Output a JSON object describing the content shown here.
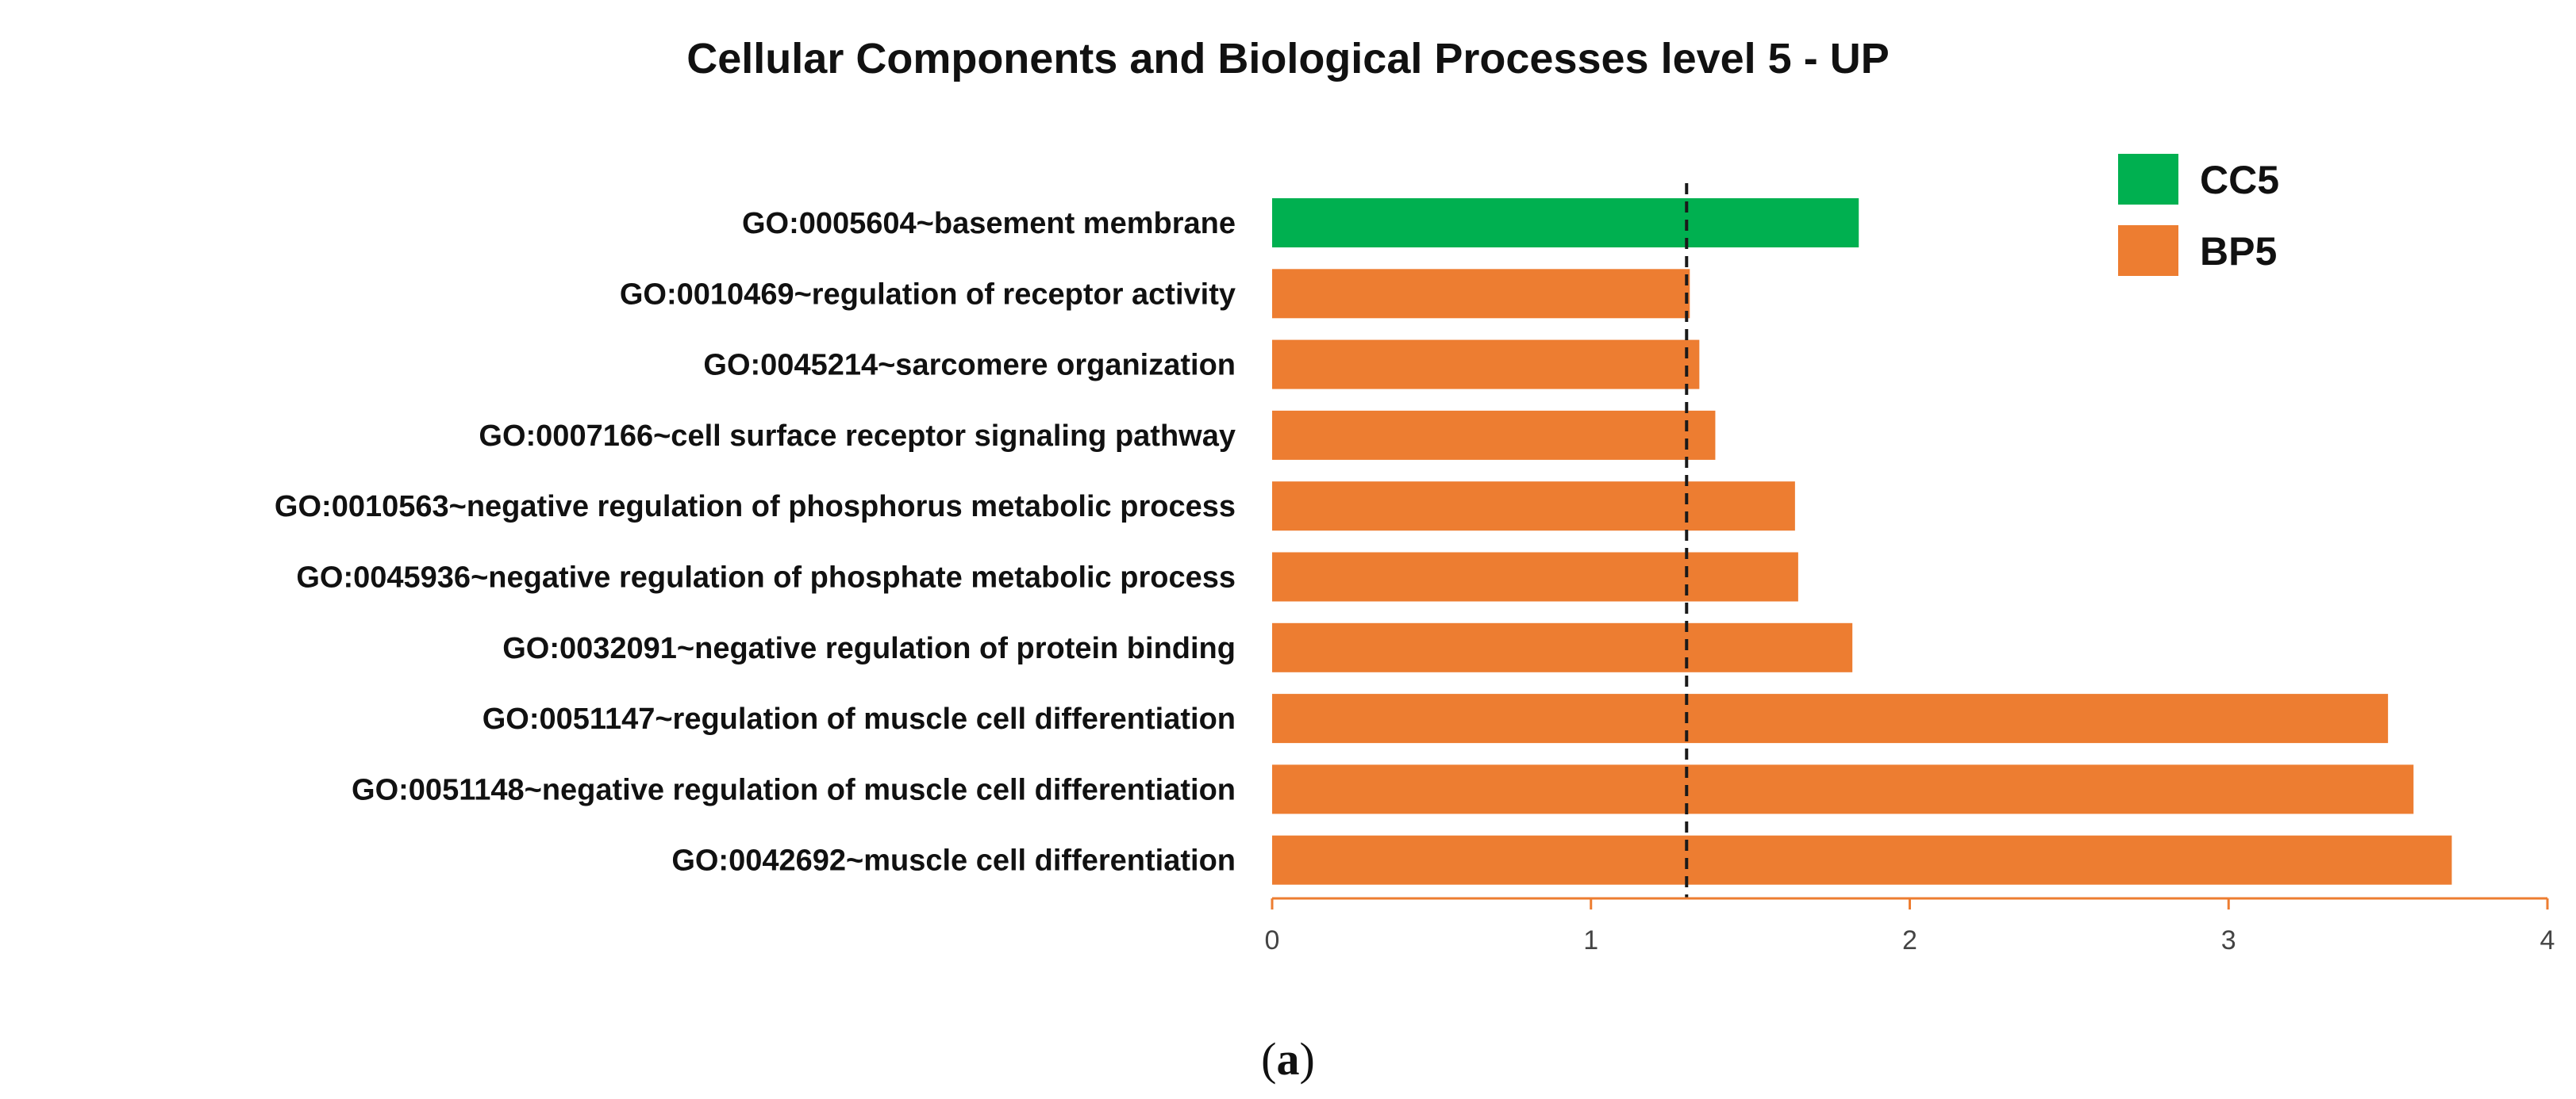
{
  "chart_data": {
    "type": "bar",
    "orientation": "horizontal",
    "title": "Cellular Components and Biological Processes level 5 - UP",
    "categories": [
      "GO:0005604~basement membrane",
      "GO:0010469~regulation of receptor activity",
      "GO:0045214~sarcomere organization",
      "GO:0007166~cell surface receptor signaling pathway",
      "GO:0010563~negative regulation of phosphorus metabolic process",
      "GO:0045936~negative regulation of phosphate metabolic process",
      "GO:0032091~negative regulation of protein binding",
      "GO:0051147~regulation of muscle cell differentiation",
      "GO:0051148~negative regulation of muscle cell differentiation",
      "GO:0042692~muscle cell differentiation"
    ],
    "values": [
      1.84,
      1.31,
      1.34,
      1.39,
      1.64,
      1.65,
      1.82,
      3.5,
      3.58,
      3.7
    ],
    "groups": [
      "CC5",
      "BP5",
      "BP5",
      "BP5",
      "BP5",
      "BP5",
      "BP5",
      "BP5",
      "BP5",
      "BP5"
    ],
    "legend": [
      {
        "name": "CC5",
        "color": "#00b050"
      },
      {
        "name": "BP5",
        "color": "#ed7d31"
      }
    ],
    "legend_position": "top-right",
    "xlim": [
      0,
      4
    ],
    "xticks": [
      "0",
      "1",
      "2",
      "3",
      "4"
    ],
    "threshold": 1.3,
    "xlabel": "",
    "ylabel": "",
    "grid": false
  },
  "caption": {
    "open": "(",
    "letter": "a",
    "close": ")"
  }
}
